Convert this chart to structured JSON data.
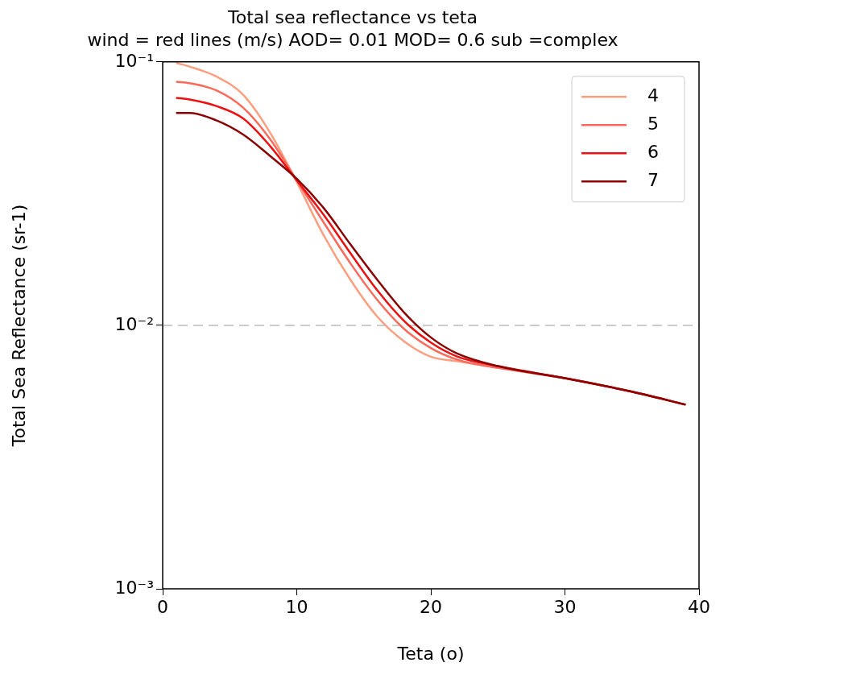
{
  "chart_data": {
    "type": "line",
    "title": "Total sea reflectance vs teta",
    "subtitle": "wind = red lines (m/s) AOD= 0.01 MOD= 0.6 sub =complex",
    "xlabel": "Teta (o)",
    "ylabel": "Total Sea Reflectance (sr-1)",
    "x": [
      1,
      2,
      4,
      6,
      8,
      10,
      12,
      14,
      16,
      18,
      20,
      22,
      25,
      30,
      35,
      39
    ],
    "series": [
      {
        "name": "4",
        "color": "#fc9f81",
        "values": [
          0.099,
          0.096,
          0.088,
          0.075,
          0.054,
          0.035,
          0.022,
          0.0149,
          0.0108,
          0.0087,
          0.0076,
          0.0073,
          0.0069,
          0.0063,
          0.0056,
          0.005
        ]
      },
      {
        "name": "5",
        "color": "#fb6a5a",
        "values": [
          0.084,
          0.083,
          0.078,
          0.067,
          0.051,
          0.0355,
          0.0246,
          0.0172,
          0.0125,
          0.0097,
          0.0082,
          0.0074,
          0.0069,
          0.0063,
          0.0056,
          0.005
        ]
      },
      {
        "name": "6",
        "color": "#ee1010",
        "values": [
          0.073,
          0.072,
          0.068,
          0.061,
          0.048,
          0.0355,
          0.0263,
          0.0188,
          0.0136,
          0.0104,
          0.0086,
          0.0076,
          0.007,
          0.0063,
          0.0056,
          0.005
        ]
      },
      {
        "name": "7",
        "color": "#8b0000",
        "values": [
          0.064,
          0.064,
          0.06,
          0.053,
          0.044,
          0.036,
          0.0279,
          0.0203,
          0.0149,
          0.0112,
          0.009,
          0.0078,
          0.007,
          0.0063,
          0.0056,
          0.005
        ]
      }
    ],
    "xlim": [
      0,
      40
    ],
    "xticks": [
      0,
      10,
      20,
      30,
      40
    ],
    "ylim": [
      0.001,
      0.1
    ],
    "yticks": [
      {
        "value": 0.001,
        "label": "10⁻³"
      },
      {
        "value": 0.01,
        "label": "10⁻²"
      },
      {
        "value": 0.1,
        "label": "10⁻¹"
      }
    ],
    "log": "y",
    "grid": false,
    "legend": "top right",
    "line_style": "solid",
    "marker": "none",
    "ref_lines": [
      {
        "axis": "y",
        "value": 0.01,
        "color": "#cccccc",
        "line_style": "dashed"
      }
    ]
  }
}
